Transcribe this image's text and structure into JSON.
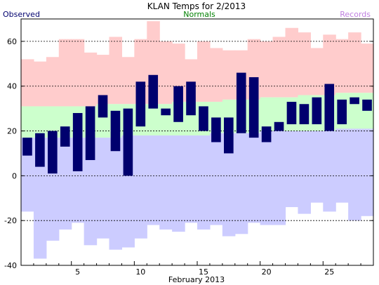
{
  "chart_data": {
    "type": "bar",
    "title": "KLAN Temps for 2/2013",
    "xlabel": "February 2013",
    "ylabel": "",
    "ylim": [
      -40,
      70
    ],
    "yticks": [
      -40,
      -20,
      0,
      20,
      40,
      60
    ],
    "xticks": [
      5,
      10,
      15,
      20,
      25
    ],
    "grid": true,
    "legend": [
      {
        "name": "Observed",
        "color": "#00006e",
        "position": "top-left"
      },
      {
        "name": "Normals",
        "color": "#008000",
        "position": "top-center"
      },
      {
        "name": "Records",
        "color": "#c080e0",
        "position": "top-right"
      }
    ],
    "colors": {
      "observed_bar": "#00006e",
      "normal_band": "#ccffcc",
      "record_high_band": "#ffcccc",
      "record_low_band": "#ccccff",
      "grid": "#000000"
    },
    "days": [
      1,
      2,
      3,
      4,
      5,
      6,
      7,
      8,
      9,
      10,
      11,
      12,
      13,
      14,
      15,
      16,
      17,
      18,
      19,
      20,
      21,
      22,
      23,
      24,
      25,
      26,
      27,
      28
    ],
    "series": [
      {
        "name": "Observed",
        "high": [
          17,
          19,
          20,
          22,
          28,
          31,
          36,
          29,
          30,
          42,
          45,
          30,
          40,
          42,
          31,
          26,
          26,
          46,
          44,
          22,
          24,
          33,
          32,
          35,
          41,
          34,
          35,
          34
        ],
        "low": [
          9,
          4,
          1,
          13,
          2,
          7,
          26,
          11,
          0,
          22,
          30,
          27,
          24,
          27,
          20,
          15,
          10,
          19,
          17,
          15,
          20,
          23,
          23,
          23,
          20,
          23,
          32,
          29
        ]
      },
      {
        "name": "Normals",
        "high": [
          31,
          31,
          31,
          31,
          31,
          31,
          32,
          32,
          32,
          32,
          32,
          32,
          33,
          33,
          33,
          33,
          34,
          34,
          34,
          35,
          35,
          35,
          36,
          36,
          36,
          37,
          37,
          37
        ],
        "low": [
          17,
          17,
          17,
          17,
          17,
          17,
          17,
          17,
          18,
          18,
          18,
          18,
          18,
          18,
          18,
          19,
          19,
          19,
          19,
          20,
          20,
          20,
          20,
          20,
          20,
          21,
          21,
          21
        ]
      },
      {
        "name": "Records",
        "high": [
          52,
          51,
          53,
          61,
          61,
          55,
          54,
          62,
          53,
          61,
          69,
          60,
          59,
          52,
          60,
          57,
          56,
          56,
          61,
          60,
          62,
          66,
          64,
          57,
          63,
          61,
          64,
          59
        ],
        "low": [
          -16,
          -37,
          -29,
          -24,
          -21,
          -31,
          -28,
          -33,
          -32,
          -28,
          -22,
          -24,
          -25,
          -21,
          -24,
          -22,
          -27,
          -26,
          -21,
          -22,
          -22,
          -14,
          -17,
          -12,
          -16,
          -12,
          -20,
          -18
        ]
      }
    ]
  }
}
